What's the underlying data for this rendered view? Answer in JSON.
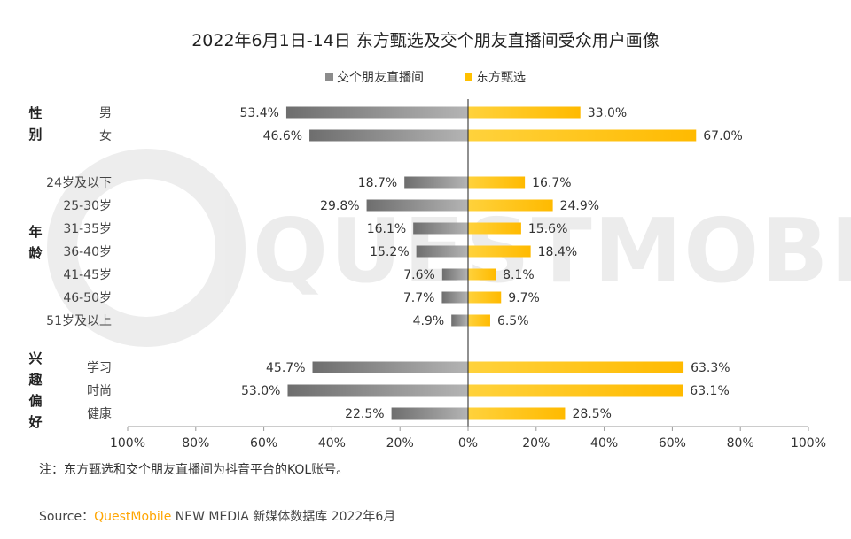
{
  "chart_data": {
    "type": "bar",
    "title": "2022年6月1日-14日 东方甄选及交个朋友直播间受众用户画像",
    "series": [
      {
        "name": "交个朋友直播间",
        "color": "#8c8c8c"
      },
      {
        "name": "东方甄选",
        "color": "#ffc000"
      }
    ],
    "groups": [
      {
        "label": [
          "性",
          "别"
        ],
        "rows": [
          {
            "category": "男",
            "left": 53.4,
            "right": 33.0,
            "left_label": "53.4%",
            "right_label": "33.0%"
          },
          {
            "category": "女",
            "left": 46.6,
            "right": 67.0,
            "left_label": "46.6%",
            "right_label": "67.0%"
          }
        ]
      },
      {
        "label": [
          "年",
          "龄"
        ],
        "rows": [
          {
            "category": "24岁及以下",
            "left": 18.7,
            "right": 16.7,
            "left_label": "18.7%",
            "right_label": "16.7%"
          },
          {
            "category": "25-30岁",
            "left": 29.8,
            "right": 24.9,
            "left_label": "29.8%",
            "right_label": "24.9%"
          },
          {
            "category": "31-35岁",
            "left": 16.1,
            "right": 15.6,
            "left_label": "16.1%",
            "right_label": "15.6%"
          },
          {
            "category": "36-40岁",
            "left": 15.2,
            "right": 18.4,
            "left_label": "15.2%",
            "right_label": "18.4%"
          },
          {
            "category": "41-45岁",
            "left": 7.6,
            "right": 8.1,
            "left_label": "7.6%",
            "right_label": "8.1%"
          },
          {
            "category": "46-50岁",
            "left": 7.7,
            "right": 9.7,
            "left_label": "7.7%",
            "right_label": "9.7%"
          },
          {
            "category": "51岁及以上",
            "left": 4.9,
            "right": 6.5,
            "left_label": "4.9%",
            "right_label": "6.5%"
          }
        ]
      },
      {
        "label": [
          "兴",
          "趣",
          "偏",
          "好"
        ],
        "rows": [
          {
            "category": "学习",
            "left": 45.7,
            "right": 63.3,
            "left_label": "45.7%",
            "right_label": "63.3%"
          },
          {
            "category": "时尚",
            "left": 53.0,
            "right": 63.1,
            "left_label": "53.0%",
            "right_label": "63.1%"
          },
          {
            "category": "健康",
            "left": 22.5,
            "right": 28.5,
            "left_label": "22.5%",
            "right_label": "28.5%"
          }
        ]
      }
    ],
    "x_ticks": [
      "100%",
      "80%",
      "60%",
      "40%",
      "20%",
      "0%",
      "20%",
      "40%",
      "60%",
      "80%",
      "100%"
    ],
    "xlim": [
      -100,
      100
    ],
    "legend": "top-center"
  },
  "watermark": "QUESTMOBILE",
  "note": "注：东方甄选和交个朋友直播间为抖音平台的KOL账号。",
  "source": {
    "prefix": "Source：",
    "brand": "QuestMobile",
    "rest": " NEW MEDIA 新媒体数据库 2022年6月",
    "brand_color": "#ffa500"
  }
}
